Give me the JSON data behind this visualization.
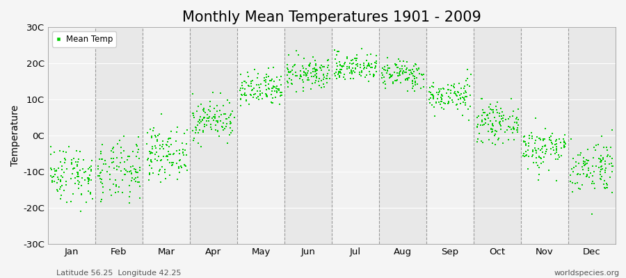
{
  "title": "Monthly Mean Temperatures 1901 - 2009",
  "ylabel": "Temperature",
  "xlabel_labels": [
    "Jan",
    "Feb",
    "Mar",
    "Apr",
    "May",
    "Jun",
    "Jul",
    "Aug",
    "Sep",
    "Oct",
    "Nov",
    "Dec"
  ],
  "ytick_labels": [
    "-30C",
    "-20C",
    "-10C",
    "0C",
    "10C",
    "20C",
    "30C"
  ],
  "ytick_values": [
    -30,
    -20,
    -10,
    0,
    10,
    20,
    30
  ],
  "ylim": [
    -30,
    30
  ],
  "dot_color": "#00CC00",
  "dot_marker": "s",
  "dot_size": 3,
  "legend_label": "Mean Temp",
  "bg_light": "#f2f2f2",
  "bg_dark": "#e8e8e8",
  "grid_color": "#aaaaaa",
  "title_fontsize": 15,
  "axis_fontsize": 10,
  "tick_fontsize": 9.5,
  "subtitle_left": "Latitude 56.25  Longitude 42.25",
  "subtitle_right": "worldspecies.org",
  "num_years": 109,
  "monthly_means": [
    -10.5,
    -10.2,
    -4.8,
    4.5,
    12.5,
    17.0,
    19.0,
    17.0,
    11.0,
    3.5,
    -3.5,
    -8.5
  ],
  "monthly_stds": [
    4.0,
    4.2,
    3.5,
    2.8,
    2.5,
    2.2,
    2.0,
    2.0,
    2.3,
    2.5,
    3.0,
    3.8
  ]
}
